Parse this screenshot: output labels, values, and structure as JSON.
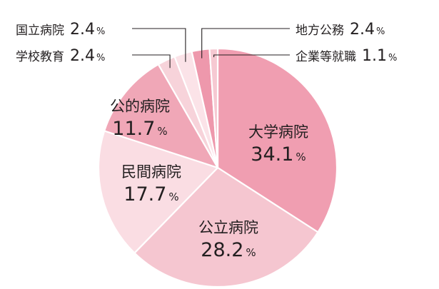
{
  "chart_data": {
    "type": "pie",
    "unit": "%",
    "slices": [
      {
        "label": "大学病院",
        "value": 34.1,
        "color": "#f09eb1"
      },
      {
        "label": "公立病院",
        "value": 28.2,
        "color": "#f5c6d0"
      },
      {
        "label": "民間病院",
        "value": 17.7,
        "color": "#fadde3"
      },
      {
        "label": "公的病院",
        "value": 11.7,
        "color": "#f0a7b7"
      },
      {
        "label": "学校教育",
        "value": 2.4,
        "color": "#f7d3da"
      },
      {
        "label": "国立病院",
        "value": 2.4,
        "color": "#fbe3e8"
      },
      {
        "label": "地方公務",
        "value": 2.4,
        "color": "#ee98ac"
      },
      {
        "label": "企業等就職",
        "value": 1.1,
        "color": "#f6c9d2"
      }
    ]
  }
}
